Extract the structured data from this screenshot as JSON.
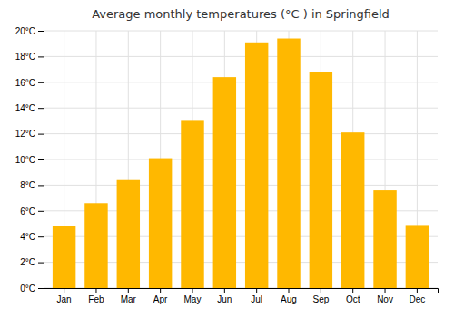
{
  "chart_data": {
    "type": "bar",
    "title": "Average monthly temperatures (°C ) in Springfield",
    "categories": [
      "Jan",
      "Feb",
      "Mar",
      "Apr",
      "May",
      "Jun",
      "Jul",
      "Aug",
      "Sep",
      "Oct",
      "Nov",
      "Dec"
    ],
    "values": [
      4.8,
      6.6,
      8.4,
      10.1,
      13.0,
      16.4,
      19.1,
      19.4,
      16.8,
      12.1,
      7.6,
      4.9
    ],
    "color": "#FFB800",
    "ylim": [
      0,
      20
    ],
    "yticks": [
      {
        "value": 0,
        "label": "0°C"
      },
      {
        "value": 2,
        "label": "2°C"
      },
      {
        "value": 4,
        "label": "4°C"
      },
      {
        "value": 6,
        "label": "6°C"
      },
      {
        "value": 8,
        "label": "8°C"
      },
      {
        "value": 10,
        "label": "10°C"
      },
      {
        "value": 12,
        "label": "12°C"
      },
      {
        "value": 14,
        "label": "14°C"
      },
      {
        "value": 16,
        "label": "16°C"
      },
      {
        "value": 18,
        "label": "18°C"
      },
      {
        "value": 20,
        "label": "20°C"
      }
    ],
    "grid": true
  }
}
